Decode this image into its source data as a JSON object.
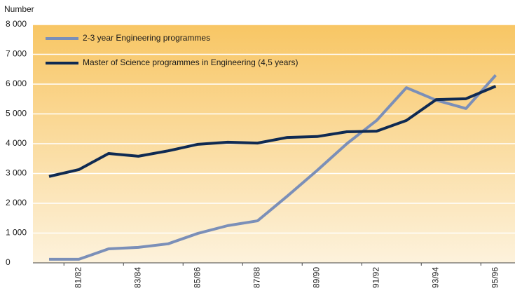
{
  "chart_data": {
    "type": "line",
    "y_label": "Number",
    "categories": [
      null,
      "81/82",
      null,
      "83/84",
      null,
      "85/86",
      null,
      "87/88",
      null,
      "89/90",
      null,
      "91/92",
      null,
      "93/94",
      null,
      "95/96"
    ],
    "series": [
      {
        "name": "2-3 year Engineering programmes",
        "color": "#7b8fb8",
        "values": [
          120,
          120,
          470,
          520,
          640,
          990,
          1250,
          1410,
          2240,
          3100,
          4000,
          4780,
          5880,
          5460,
          5180,
          6300
        ]
      },
      {
        "name": "Master of Science programmes in Engineering (4,5 years)",
        "color": "#0f2a52",
        "values": [
          2900,
          3130,
          3670,
          3580,
          3760,
          3980,
          4050,
          4020,
          4210,
          4240,
          4400,
          4420,
          4780,
          5480,
          5510,
          5930
        ]
      }
    ],
    "ylim": [
      0,
      8000
    ],
    "yticks": [
      0,
      {
        "value": 1000,
        "label": "1 000"
      },
      {
        "value": 2000,
        "label": "2 000"
      },
      {
        "value": 3000,
        "label": "3 000"
      },
      {
        "value": 4000,
        "label": "4 000"
      },
      {
        "value": 5000,
        "label": "5 000"
      },
      {
        "value": 6000,
        "label": "6 000"
      },
      {
        "value": 7000,
        "label": "7 000"
      },
      {
        "value": 8000,
        "label": "8 000"
      }
    ],
    "grid": true
  }
}
